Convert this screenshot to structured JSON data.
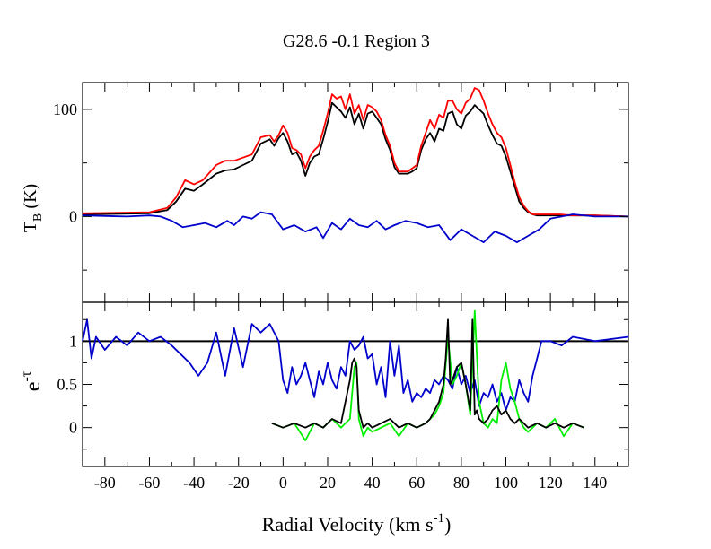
{
  "chart_data": [
    {
      "type": "line",
      "title": "G28.6 -0.1   Region 3",
      "ylabel_main": "T",
      "ylabel_sub": "B",
      "ylabel_unit": " (K)",
      "xlim": [
        -90,
        155
      ],
      "ylim": [
        -80,
        125
      ],
      "yticks": [
        {
          "value": 0,
          "label": "0"
        },
        {
          "value": 100,
          "label": "100"
        }
      ],
      "series": [
        {
          "name": "black",
          "color": "#000000",
          "x": [
            -90,
            -60,
            -52,
            -48,
            -44,
            -40,
            -36,
            -30,
            -26,
            -22,
            -18,
            -14,
            -10,
            -6,
            -4,
            -2,
            0,
            2,
            4,
            6,
            8,
            10,
            12,
            14,
            16,
            18,
            20,
            22,
            24,
            26,
            28,
            30,
            32,
            34,
            36,
            38,
            40,
            42,
            44,
            46,
            48,
            50,
            52,
            54,
            56,
            58,
            60,
            62,
            64,
            66,
            68,
            70,
            72,
            74,
            76,
            78,
            80,
            82,
            84,
            86,
            88,
            90,
            92,
            94,
            96,
            98,
            100,
            102,
            104,
            106,
            108,
            110,
            112,
            114,
            116,
            118,
            120,
            124,
            130,
            140,
            155
          ],
          "y": [
            2,
            3,
            6,
            14,
            26,
            24,
            30,
            40,
            43,
            44,
            48,
            52,
            68,
            72,
            66,
            73,
            78,
            70,
            58,
            60,
            52,
            38,
            50,
            56,
            58,
            72,
            88,
            106,
            102,
            98,
            92,
            102,
            86,
            96,
            82,
            96,
            98,
            92,
            86,
            72,
            62,
            46,
            40,
            40,
            40,
            42,
            45,
            62,
            72,
            78,
            70,
            82,
            80,
            96,
            98,
            86,
            82,
            94,
            98,
            104,
            100,
            96,
            85,
            76,
            68,
            66,
            56,
            42,
            28,
            14,
            8,
            4,
            2,
            1,
            1,
            1,
            1,
            1,
            1,
            1,
            0
          ]
        },
        {
          "name": "red",
          "color": "#ff0000",
          "x": [
            -90,
            -60,
            -52,
            -48,
            -44,
            -40,
            -36,
            -30,
            -26,
            -22,
            -18,
            -14,
            -10,
            -6,
            -4,
            -2,
            0,
            2,
            4,
            6,
            8,
            10,
            12,
            14,
            16,
            18,
            20,
            22,
            24,
            26,
            28,
            30,
            32,
            34,
            36,
            38,
            40,
            42,
            44,
            46,
            48,
            50,
            52,
            54,
            56,
            58,
            60,
            62,
            64,
            66,
            68,
            70,
            72,
            74,
            76,
            78,
            80,
            82,
            84,
            86,
            88,
            90,
            92,
            94,
            96,
            98,
            100,
            102,
            104,
            106,
            108,
            110,
            112,
            114,
            116,
            118,
            120,
            124,
            130,
            140,
            155
          ],
          "y": [
            3,
            4,
            8,
            18,
            34,
            30,
            34,
            48,
            52,
            52,
            55,
            58,
            74,
            76,
            70,
            76,
            85,
            78,
            64,
            62,
            58,
            45,
            56,
            62,
            66,
            80,
            96,
            114,
            110,
            112,
            100,
            114,
            96,
            104,
            90,
            104,
            102,
            98,
            90,
            76,
            66,
            50,
            42,
            42,
            42,
            45,
            48,
            66,
            78,
            90,
            82,
            95,
            92,
            108,
            108,
            100,
            96,
            106,
            110,
            120,
            118,
            108,
            96,
            86,
            78,
            74,
            64,
            48,
            32,
            18,
            10,
            5,
            2,
            2,
            2,
            2,
            2,
            2,
            1,
            1,
            0
          ]
        },
        {
          "name": "blue",
          "color": "#0000cc",
          "x": [
            -90,
            -70,
            -60,
            -55,
            -50,
            -45,
            -40,
            -35,
            -30,
            -25,
            -22,
            -18,
            -14,
            -10,
            -5,
            0,
            5,
            10,
            15,
            18,
            22,
            26,
            30,
            34,
            38,
            42,
            46,
            50,
            55,
            60,
            65,
            70,
            75,
            80,
            85,
            90,
            95,
            100,
            105,
            110,
            115,
            120,
            130,
            140,
            155
          ],
          "y": [
            1,
            0,
            1,
            0,
            -4,
            -10,
            -8,
            -6,
            -10,
            -4,
            -8,
            0,
            -2,
            4,
            2,
            -12,
            -8,
            -14,
            -10,
            -20,
            -6,
            -12,
            -2,
            -8,
            -10,
            -4,
            -12,
            -8,
            -4,
            -6,
            -10,
            -8,
            -22,
            -12,
            -18,
            -24,
            -14,
            -18,
            -24,
            -18,
            -12,
            -2,
            2,
            0,
            0
          ]
        }
      ]
    },
    {
      "type": "line",
      "xlabel_main": "Radial Velocity (km s",
      "xlabel_sup": "-1",
      "xlabel_end": ")",
      "ylabel_base": "e",
      "ylabel_sup": "-τ",
      "xlim": [
        -90,
        155
      ],
      "ylim": [
        -0.45,
        1.45
      ],
      "xticks": [
        {
          "value": -80,
          "label": "-80"
        },
        {
          "value": -60,
          "label": "-60"
        },
        {
          "value": -40,
          "label": "-40"
        },
        {
          "value": -20,
          "label": "-20"
        },
        {
          "value": 0,
          "label": "0"
        },
        {
          "value": 20,
          "label": "20"
        },
        {
          "value": 40,
          "label": "40"
        },
        {
          "value": 60,
          "label": "60"
        },
        {
          "value": 80,
          "label": "80"
        },
        {
          "value": 100,
          "label": "100"
        },
        {
          "value": 120,
          "label": "120"
        },
        {
          "value": 140,
          "label": "140"
        }
      ],
      "yticks": [
        {
          "value": 0,
          "label": "0"
        },
        {
          "value": 0.5,
          "label": "0.5"
        },
        {
          "value": 1,
          "label": "1"
        }
      ],
      "reference_line": {
        "y": 1,
        "color": "#000000"
      },
      "series": [
        {
          "name": "blue",
          "color": "#0000cc",
          "x": [
            -90,
            -88,
            -86,
            -84,
            -80,
            -75,
            -70,
            -65,
            -60,
            -55,
            -50,
            -46,
            -42,
            -38,
            -34,
            -30,
            -26,
            -22,
            -18,
            -14,
            -10,
            -6,
            -2,
            0,
            2,
            4,
            6,
            8,
            10,
            12,
            14,
            16,
            18,
            20,
            22,
            24,
            26,
            28,
            30,
            32,
            34,
            36,
            38,
            40,
            42,
            44,
            46,
            48,
            50,
            52,
            54,
            56,
            58,
            60,
            62,
            64,
            66,
            68,
            70,
            72,
            74,
            76,
            78,
            80,
            82,
            84,
            86,
            88,
            90,
            92,
            94,
            96,
            98,
            100,
            102,
            104,
            106,
            108,
            110,
            112,
            114,
            116,
            120,
            125,
            130,
            140,
            155
          ],
          "y": [
            1.0,
            1.25,
            0.8,
            1.05,
            0.9,
            1.05,
            0.95,
            1.1,
            1.0,
            1.05,
            0.95,
            0.85,
            0.75,
            0.6,
            0.75,
            1.1,
            0.6,
            1.15,
            0.7,
            1.2,
            1.1,
            1.2,
            1.0,
            0.55,
            0.4,
            0.7,
            0.5,
            0.6,
            0.75,
            0.55,
            0.35,
            0.65,
            0.5,
            0.75,
            0.55,
            0.45,
            0.7,
            0.6,
            1.0,
            0.9,
            0.95,
            1.05,
            0.8,
            0.85,
            0.5,
            0.7,
            0.35,
            1.0,
            0.6,
            0.95,
            0.4,
            0.55,
            0.3,
            0.4,
            0.35,
            0.45,
            0.4,
            0.55,
            0.5,
            0.6,
            0.55,
            0.45,
            0.7,
            0.5,
            0.6,
            0.4,
            0.55,
            0.25,
            0.4,
            0.35,
            0.5,
            0.3,
            0.4,
            0.2,
            0.35,
            0.3,
            0.55,
            0.4,
            0.3,
            0.6,
            0.8,
            1.0,
            1.0,
            0.95,
            1.05,
            1.0,
            1.05
          ]
        },
        {
          "name": "green",
          "color": "#00ee00",
          "x": [
            -5,
            0,
            5,
            10,
            14,
            18,
            22,
            26,
            28,
            30,
            32,
            33,
            34,
            36,
            38,
            40,
            44,
            48,
            52,
            56,
            60,
            64,
            66,
            68,
            70,
            72,
            74,
            76,
            78,
            80,
            82,
            84,
            86,
            88,
            90,
            92,
            94,
            96,
            98,
            100,
            102,
            104,
            106,
            108,
            110,
            114,
            118,
            122,
            126,
            130,
            135
          ],
          "y": [
            0.05,
            0.0,
            0.05,
            -0.15,
            0.05,
            0.0,
            0.1,
            0.0,
            0.05,
            0.1,
            0.7,
            0.75,
            0.1,
            -0.1,
            0.0,
            -0.05,
            0.0,
            0.05,
            -0.1,
            0.05,
            0.0,
            0.05,
            0.1,
            0.15,
            0.25,
            0.4,
            1.05,
            0.5,
            0.6,
            0.75,
            0.5,
            0.15,
            1.35,
            0.3,
            0.05,
            0.0,
            0.1,
            0.05,
            0.55,
            0.75,
            0.45,
            0.3,
            0.1,
            0.0,
            -0.05,
            0.05,
            0.0,
            0.1,
            -0.1,
            0.05,
            0.0
          ]
        },
        {
          "name": "black",
          "color": "#000000",
          "x": [
            -5,
            0,
            5,
            10,
            14,
            18,
            22,
            26,
            28,
            30,
            31,
            32,
            33,
            34,
            36,
            38,
            40,
            44,
            48,
            52,
            56,
            60,
            64,
            66,
            68,
            70,
            72,
            73,
            74,
            75,
            76,
            78,
            80,
            82,
            84,
            85,
            86,
            87,
            88,
            90,
            92,
            94,
            96,
            98,
            100,
            102,
            104,
            106,
            108,
            110,
            114,
            118,
            122,
            126,
            130,
            135
          ],
          "y": [
            0.05,
            0.0,
            0.05,
            0.0,
            0.05,
            0.0,
            0.1,
            0.05,
            0.3,
            0.55,
            0.75,
            0.8,
            0.7,
            0.2,
            0.0,
            0.05,
            0.0,
            0.05,
            0.1,
            0.0,
            0.05,
            0.0,
            0.05,
            0.1,
            0.2,
            0.3,
            0.5,
            0.8,
            1.25,
            0.5,
            0.55,
            0.7,
            0.75,
            0.5,
            0.2,
            1.25,
            0.15,
            0.2,
            0.1,
            0.05,
            0.1,
            0.2,
            0.25,
            0.15,
            0.2,
            0.1,
            0.05,
            0.1,
            0.05,
            0.0,
            0.05,
            0.0,
            0.05,
            0.0,
            0.05,
            0.0
          ]
        }
      ]
    }
  ]
}
